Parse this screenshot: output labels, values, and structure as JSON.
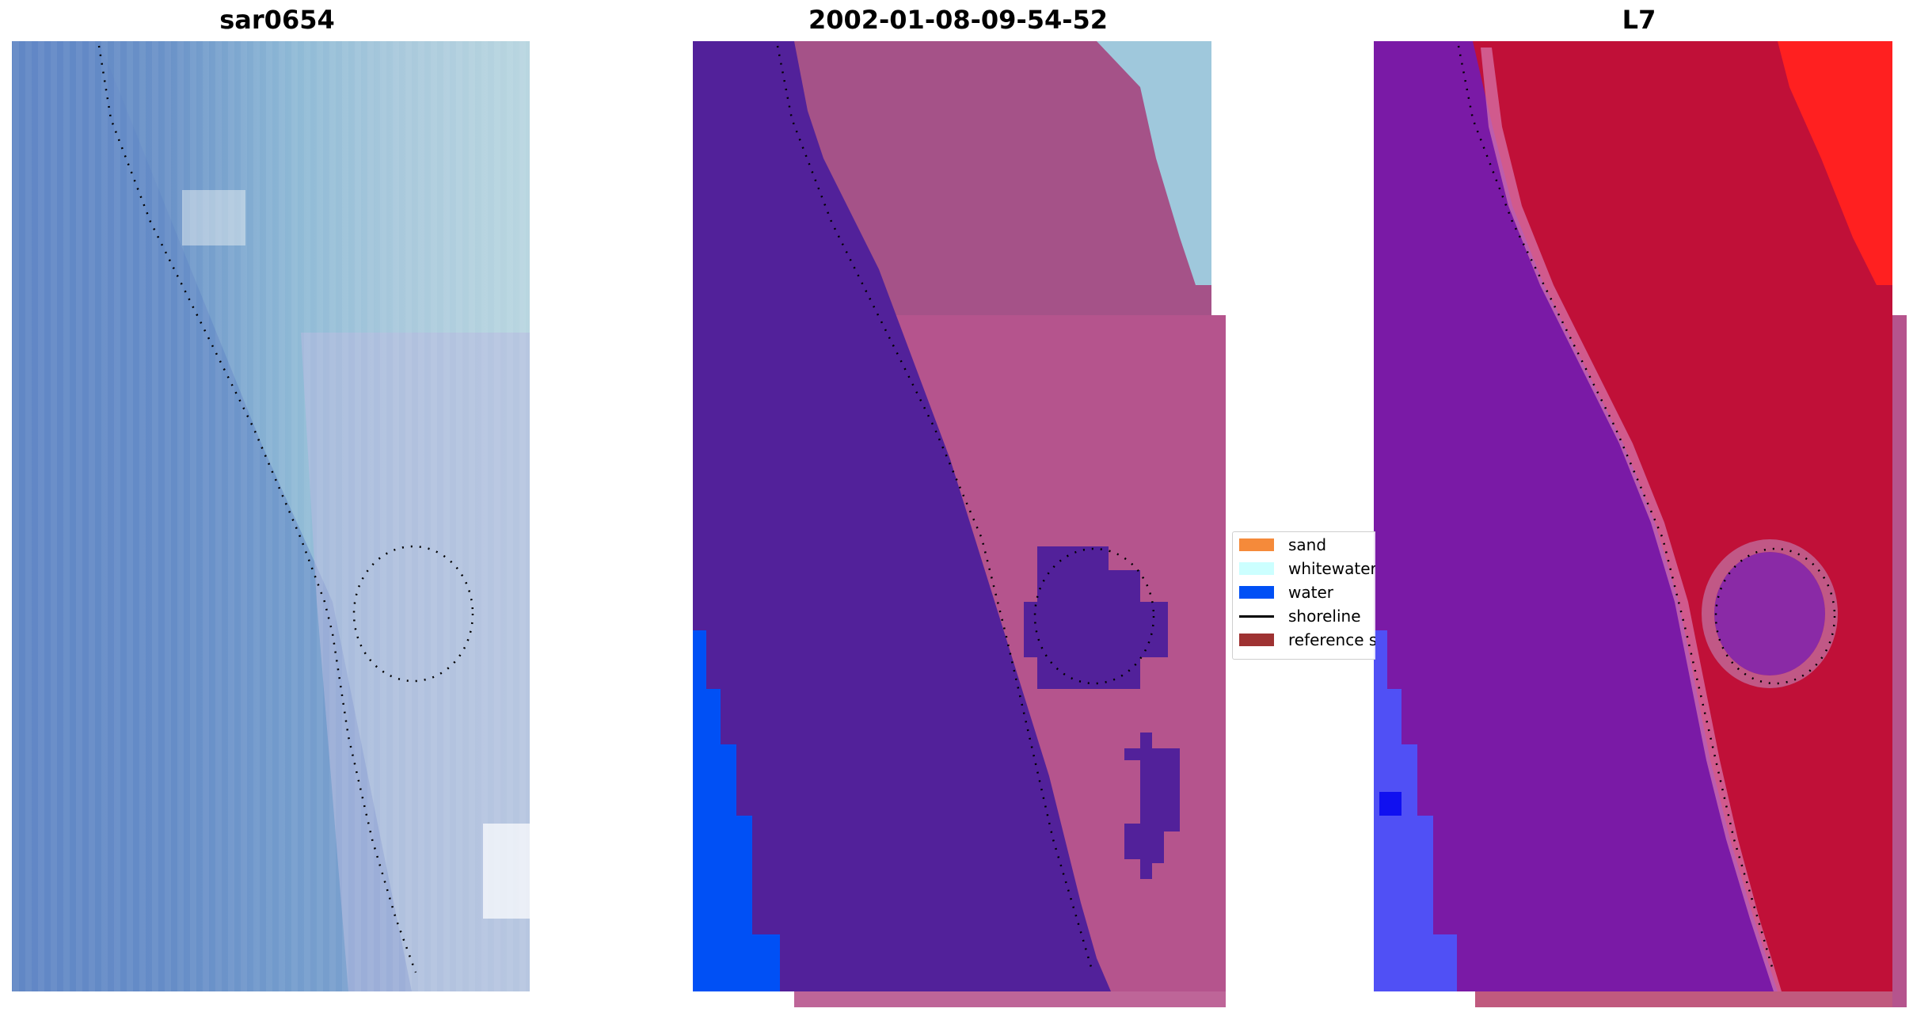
{
  "panels": [
    {
      "title": "sar0654"
    },
    {
      "title": "2002-01-08-09-54-52"
    },
    {
      "title": "L7"
    }
  ],
  "legend": {
    "items": [
      {
        "label": "sand",
        "color": "#f58a3a",
        "kind": "patch"
      },
      {
        "label": "whitewater",
        "color": "#ccffff",
        "kind": "patch"
      },
      {
        "label": "water",
        "color": "#0050f5",
        "kind": "patch"
      },
      {
        "label": "shoreline",
        "color": "#000000",
        "kind": "line"
      },
      {
        "label": "reference shoreline",
        "color": "#9e3232",
        "kind": "patch"
      }
    ]
  },
  "colors": {
    "ocean_rgb": "#6b8fc7",
    "classified_water_overlay": "#52219a",
    "classified_land": "#a55288",
    "water_mask": "#0050f5",
    "mndwi_land": "#c01038",
    "mndwi_water": "#7a1aa6",
    "mndwi_high": "#ff1a1a"
  }
}
